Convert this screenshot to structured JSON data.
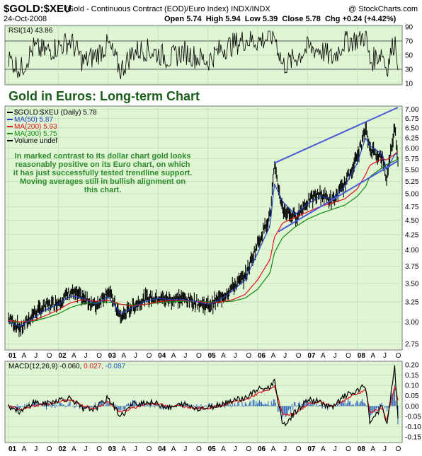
{
  "header": {
    "symbol": "$GOLD:$XEU",
    "subtitle": "(Gold - Continuous Contract (EOD)/Euro Index)  INDX/INDX",
    "brand": "@ StockCharts.com",
    "date": "24-Oct-2008",
    "open_label": "Open",
    "open": "5.74",
    "high_label": "High",
    "high": "5.94",
    "low_label": "Low",
    "low": "5.39",
    "close_label": "Close",
    "close": "5.78",
    "chg_label": "Chg",
    "chg": "+0.24 (+4.42%)"
  },
  "colors": {
    "panel_bg": "#dff5d3",
    "price": "#000000",
    "ma50": "#1f3fbf",
    "ma200": "#e0141e",
    "ma300": "#118811",
    "trendline": "#4a5bd8",
    "rsi_line": "#000000",
    "macd_line": "#000000",
    "macd_signal": "#e0141e",
    "macd_hist": "#1f57bf",
    "title_color": "#1a5e1a",
    "annotation_color": "#2e8b2e"
  },
  "rsi_panel": {
    "label": "RSI(14) 43.86",
    "ticks": [
      "90",
      "70",
      "50",
      "30",
      "10"
    ]
  },
  "price_panel": {
    "title": "Gold in Euros: Long-term Chart",
    "legend": [
      {
        "name": "$GOLD:$XEU (Daily) 5.78",
        "color": "#000000"
      },
      {
        "name": "MA(50) 5.87",
        "color": "#1f3fbf"
      },
      {
        "name": "MA(200) 5.93",
        "color": "#e0141e"
      },
      {
        "name": "MA(300) 5.75",
        "color": "#118811"
      },
      {
        "name": "Volume undef",
        "color": "#000000"
      }
    ],
    "annotation": [
      "In marked contrast to its dollar chart gold looks",
      "reasonably positive on its Euro chart, on which",
      "it has just successfully tested trendline support.",
      "Moving averages still in bullish alignment on",
      "this chart."
    ],
    "yticks": [
      "7.00",
      "6.75",
      "6.50",
      "6.25",
      "6.00",
      "5.75",
      "5.50",
      "5.25",
      "5.00",
      "4.75",
      "4.50",
      "4.25",
      "4.00",
      "3.75",
      "3.50",
      "3.25",
      "3.00",
      "2.75"
    ]
  },
  "macd_panel": {
    "label_main": "MACD(12,26,9) -0.060,",
    "label_signal": "0.027,",
    "label_hist": "-0.087",
    "ticks": [
      "0.20",
      "0.15",
      "0.10",
      "0.05",
      "0.00",
      "-0.05",
      "-0.10",
      "-0.15"
    ]
  },
  "xaxis": {
    "labels": [
      "01",
      "A",
      "J",
      "O",
      "02",
      "A",
      "J",
      "O",
      "03",
      "A",
      "J",
      "O",
      "04",
      "A",
      "J",
      "O",
      "05",
      "A",
      "J",
      "O",
      "06",
      "A",
      "J",
      "O",
      "07",
      "A",
      "J",
      "O",
      "08",
      "A",
      "J",
      "O"
    ]
  },
  "chart_data": [
    {
      "type": "line",
      "title": "Gold in Euros: Long-term Chart",
      "series_name": "$GOLD:$XEU (Daily)",
      "log_scale": true,
      "ylim": [
        2.7,
        7.05
      ],
      "x": [
        "2001-01",
        "2001-04",
        "2001-07",
        "2001-10",
        "2002-01",
        "2002-04",
        "2002-07",
        "2002-10",
        "2003-01",
        "2003-04",
        "2003-07",
        "2003-10",
        "2004-01",
        "2004-04",
        "2004-07",
        "2004-10",
        "2005-01",
        "2005-04",
        "2005-07",
        "2005-10",
        "2006-01",
        "2006-04",
        "2006-05",
        "2006-07",
        "2006-10",
        "2007-01",
        "2007-04",
        "2007-07",
        "2007-10",
        "2008-01",
        "2008-03",
        "2008-04",
        "2008-07",
        "2008-08",
        "2008-10",
        "2008-10-24"
      ],
      "series": [
        {
          "name": "$GOLD:$XEU (Daily)",
          "values": [
            3.05,
            2.92,
            3.1,
            3.2,
            3.25,
            3.38,
            3.3,
            3.2,
            3.4,
            3.05,
            3.2,
            3.3,
            3.3,
            3.28,
            3.3,
            3.25,
            3.2,
            3.3,
            3.45,
            3.6,
            4.1,
            4.6,
            5.55,
            4.7,
            4.55,
            4.85,
            5.0,
            4.85,
            5.2,
            5.8,
            6.45,
            6.0,
            5.75,
            5.3,
            6.5,
            5.78
          ]
        },
        {
          "name": "MA(50)",
          "values": [
            3.0,
            2.95,
            3.05,
            3.15,
            3.22,
            3.33,
            3.3,
            3.22,
            3.32,
            3.1,
            3.18,
            3.26,
            3.3,
            3.28,
            3.28,
            3.26,
            3.22,
            3.28,
            3.4,
            3.55,
            3.95,
            4.4,
            5.2,
            4.85,
            4.6,
            4.8,
            4.95,
            4.9,
            5.15,
            5.65,
            6.25,
            6.05,
            5.85,
            5.5,
            5.85,
            5.87
          ]
        },
        {
          "name": "MA(200)",
          "values": [
            3.02,
            3.0,
            3.02,
            3.08,
            3.15,
            3.24,
            3.28,
            3.26,
            3.27,
            3.22,
            3.2,
            3.22,
            3.25,
            3.27,
            3.27,
            3.26,
            3.24,
            3.25,
            3.28,
            3.35,
            3.55,
            3.85,
            4.2,
            4.45,
            4.55,
            4.65,
            4.75,
            4.82,
            4.9,
            5.1,
            5.4,
            5.6,
            5.75,
            5.72,
            5.85,
            5.93
          ]
        },
        {
          "name": "MA(300)",
          "values": [
            3.0,
            3.0,
            3.01,
            3.05,
            3.1,
            3.18,
            3.23,
            3.24,
            3.25,
            3.22,
            3.21,
            3.22,
            3.24,
            3.25,
            3.26,
            3.26,
            3.25,
            3.25,
            3.26,
            3.3,
            3.42,
            3.65,
            3.95,
            4.2,
            4.38,
            4.52,
            4.62,
            4.7,
            4.78,
            4.95,
            5.15,
            5.35,
            5.55,
            5.62,
            5.7,
            5.75
          ]
        }
      ],
      "trendlines": [
        {
          "from": [
            "2006-05",
            5.65
          ],
          "to": [
            "2008-10-24",
            7.05
          ]
        },
        {
          "from": [
            "2006-06",
            4.3
          ],
          "to": [
            "2008-10-24",
            5.7
          ]
        }
      ]
    },
    {
      "type": "line",
      "title": "RSI(14)",
      "ylim": [
        10,
        90
      ],
      "reference_lines": [
        70,
        30
      ],
      "series": [
        {
          "name": "RSI(14)",
          "values": [
            45,
            30,
            60,
            55,
            62,
            70,
            40,
            50,
            65,
            28,
            55,
            58,
            52,
            45,
            55,
            48,
            42,
            58,
            65,
            72,
            70,
            75,
            80,
            35,
            45,
            60,
            58,
            45,
            70,
            72,
            78,
            40,
            55,
            30,
            72,
            43.86
          ]
        }
      ]
    },
    {
      "type": "line",
      "title": "MACD(12,26,9)",
      "ylim": [
        -0.17,
        0.21
      ],
      "series": [
        {
          "name": "MACD",
          "values": [
            0.0,
            -0.03,
            0.02,
            0.01,
            0.03,
            0.04,
            -0.02,
            -0.01,
            0.04,
            -0.05,
            0.01,
            0.02,
            0.01,
            -0.01,
            0.01,
            -0.01,
            -0.01,
            0.01,
            0.03,
            0.04,
            0.08,
            0.09,
            0.13,
            -0.1,
            -0.03,
            0.03,
            0.02,
            -0.01,
            0.05,
            0.07,
            0.1,
            -0.08,
            0.0,
            -0.1,
            0.19,
            -0.06
          ]
        },
        {
          "name": "Signal",
          "values": [
            0.0,
            -0.02,
            0.0,
            0.01,
            0.02,
            0.03,
            0.0,
            -0.01,
            0.02,
            -0.03,
            -0.01,
            0.01,
            0.01,
            0.0,
            0.0,
            -0.01,
            -0.01,
            0.0,
            0.02,
            0.03,
            0.06,
            0.08,
            0.1,
            -0.04,
            -0.04,
            0.01,
            0.02,
            0.0,
            0.03,
            0.06,
            0.08,
            -0.03,
            -0.01,
            -0.07,
            0.1,
            0.027
          ]
        }
      ]
    }
  ]
}
